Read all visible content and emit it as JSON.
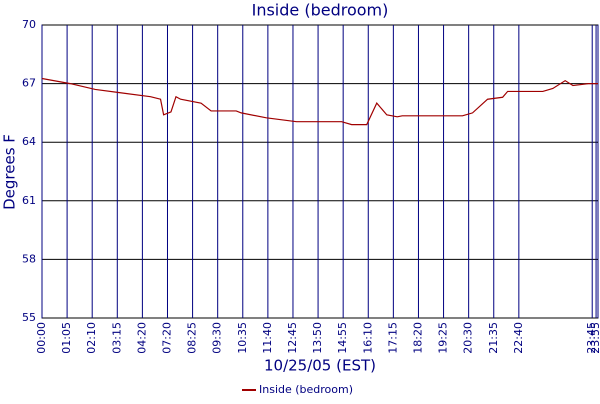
{
  "chart_data": {
    "type": "line",
    "title": "Inside (bedroom)",
    "x_label": "10/25/05 (EST)",
    "y_label": "Degrees F",
    "x": [
      0,
      73,
      138,
      203,
      281,
      307,
      315,
      334,
      347,
      359,
      412,
      438,
      503,
      516,
      581,
      659,
      776,
      802,
      841,
      867,
      893,
      920,
      933,
      1089,
      1115,
      1154,
      1193,
      1206,
      1245,
      1297,
      1323,
      1355,
      1375,
      1415,
      1440
    ],
    "series": [
      {
        "name": "Inside (bedroom)",
        "color": "#a00000",
        "values": [
          67.26,
          67.0,
          66.7,
          66.53,
          66.33,
          66.2,
          65.4,
          65.55,
          66.33,
          66.2,
          66.0,
          65.6,
          65.6,
          65.5,
          65.25,
          65.05,
          65.05,
          64.9,
          64.9,
          66.0,
          65.4,
          65.3,
          65.35,
          65.35,
          65.5,
          66.2,
          66.3,
          66.6,
          66.6,
          66.6,
          66.75,
          67.15,
          66.9,
          67.0,
          67.0
        ]
      }
    ],
    "xlim": [
      0,
      1440
    ],
    "xticks": [
      {
        "value": 0,
        "label": "00:00"
      },
      {
        "value": 65,
        "label": "01:05"
      },
      {
        "value": 130,
        "label": "02:10"
      },
      {
        "value": 195,
        "label": "03:15"
      },
      {
        "value": 260,
        "label": "04:20"
      },
      {
        "value": 325,
        "label": "07:20"
      },
      {
        "value": 390,
        "label": "08:25"
      },
      {
        "value": 455,
        "label": "09:30"
      },
      {
        "value": 520,
        "label": "10:35"
      },
      {
        "value": 585,
        "label": "11:40"
      },
      {
        "value": 650,
        "label": "12:45"
      },
      {
        "value": 715,
        "label": "13:50"
      },
      {
        "value": 780,
        "label": "14:55"
      },
      {
        "value": 845,
        "label": "16:10"
      },
      {
        "value": 910,
        "label": "17:15"
      },
      {
        "value": 975,
        "label": "18:20"
      },
      {
        "value": 1040,
        "label": "19:25"
      },
      {
        "value": 1105,
        "label": "20:30"
      },
      {
        "value": 1170,
        "label": "21:35"
      },
      {
        "value": 1235,
        "label": "22:40"
      },
      {
        "value": 1425,
        "label": "23:45"
      },
      {
        "value": 1435,
        "label": "23:55"
      }
    ],
    "ylim": [
      55,
      70
    ],
    "yticks": [
      55,
      58,
      61,
      64,
      67,
      70
    ],
    "grid": true
  }
}
